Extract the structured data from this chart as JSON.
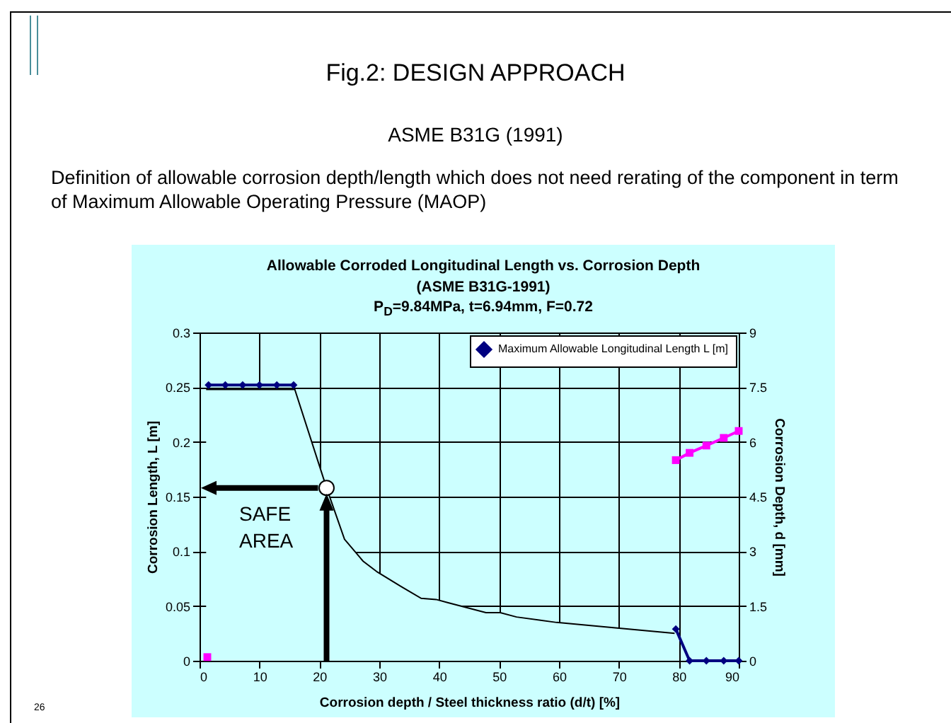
{
  "chart_data": {
    "type": "line",
    "title": "Allowable Corroded Longitudinal Length vs. Corrosion Depth",
    "subtitle": "(ASME B31G-1991)",
    "xlabel": "Corrosion depth / Steel thickness ratio (d/t) [%]",
    "ylabel": "Corrosion Length, L [m]",
    "y2label": "Corrosion Depth, d [mm]",
    "annotations": [
      "P$_{D}$=9.84MPa, t=6.94mm, F=0.72",
      "Fig.2: DESIGN APPROACH",
      "ASME B31G (1991)",
      "Definition of allowable corrosion depth/length which does not need rerating of the component in term of Maximum Allowable Operating Pressure (MAOP)",
      "26",
      "SAFE\nAREA"
    ],
    "xlim": [
      0,
      90
    ],
    "xticks": [
      0,
      10,
      20,
      30,
      40,
      50,
      60,
      70,
      80,
      90
    ],
    "ylim": [
      0,
      0.3
    ],
    "yticks": [
      0,
      0.05,
      0.1,
      0.15,
      0.2,
      0.25,
      0.3
    ],
    "y2lim": [
      0,
      9
    ],
    "y2ticks": [
      0,
      1.5,
      3,
      4.5,
      6,
      7.5,
      9
    ],
    "grid": true,
    "legend": "top right",
    "series": [
      {
        "type": "area",
        "color": "#ccffff",
        "x": [
          1.1,
          15.9,
          21.2,
          24.2,
          27.3,
          29.7,
          33.6,
          37,
          39.5,
          41.5,
          47.8,
          50.2,
          52.9,
          59.6,
          67.5,
          79.3
        ],
        "values": [
          0.248,
          0.248,
          0.158,
          0.111,
          0.091,
          0.081,
          0.068,
          0.057,
          0.056,
          0.053,
          0.044,
          0.044,
          0.04,
          0.035,
          0.031,
          0.025
        ]
      },
      {
        "name": "Maximum Allowable Longitudinal Length L [m]",
        "color": "#000080",
        "marker": "diamond",
        "x": [
          1.5,
          4.3,
          7.2,
          10,
          12.9,
          15.7,
          50,
          79.5,
          81.8,
          84.6,
          87.5,
          90
        ],
        "values": [
          0.252,
          0.252,
          0.252,
          0.252,
          0.252,
          0.252,
          null,
          0.029,
          0,
          0,
          0,
          0
        ]
      },
      {
        "axis": "y2",
        "color": "#ff00ff",
        "marker": "square",
        "x": [
          1.3,
          50,
          79.5,
          81.8,
          84.6,
          87.5,
          90
        ],
        "values": [
          0.1,
          null,
          5.5,
          5.7,
          5.9,
          6.11,
          6.3
        ]
      },
      {
        "type": "scatter",
        "color": "#ffffff",
        "marker": "circle",
        "x": [
          21.2
        ],
        "values": [
          0.158
        ]
      }
    ]
  }
}
